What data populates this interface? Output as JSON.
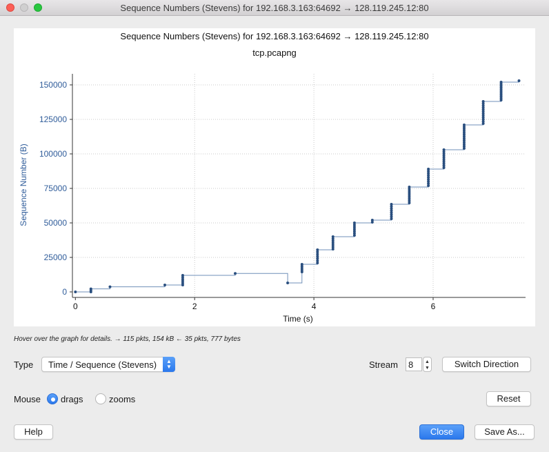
{
  "window": {
    "title": "Sequence Numbers (Stevens) for 192.168.3.163:64692 → 128.119.245.12:80"
  },
  "chart_data": {
    "type": "scatter",
    "title": "Sequence Numbers (Stevens) for 192.168.3.163:64692 → 128.119.245.12:80",
    "subtitle": "tcp.pcapng",
    "xlabel": "Time (s)",
    "ylabel": "Sequence Number (B)",
    "xlim": [
      -0.05,
      7.55
    ],
    "ylim": [
      -4000,
      158000
    ],
    "x_ticks": [
      0,
      2,
      4,
      6
    ],
    "y_ticks": [
      0,
      25000,
      50000,
      75000,
      100000,
      125000,
      150000
    ],
    "y_tick_labels": [
      "0",
      "25000",
      "50000",
      "75000",
      "100000",
      "125000",
      "150000"
    ],
    "grid": true,
    "series": [
      {
        "color": "#2a4f7f",
        "step_line": [
          [
            0.0,
            0
          ],
          [
            0.26,
            0
          ],
          [
            0.26,
            2200
          ],
          [
            0.58,
            2200
          ],
          [
            0.58,
            3700
          ],
          [
            1.5,
            3700
          ],
          [
            1.5,
            5000
          ],
          [
            1.8,
            5000
          ],
          [
            1.8,
            12000
          ],
          [
            2.68,
            12000
          ],
          [
            2.68,
            13400
          ],
          [
            3.56,
            13400
          ],
          [
            3.56,
            6500
          ],
          [
            3.8,
            6500
          ],
          [
            3.8,
            20000
          ],
          [
            4.06,
            20000
          ],
          [
            4.06,
            30500
          ],
          [
            4.32,
            30500
          ],
          [
            4.32,
            40000
          ],
          [
            4.68,
            40000
          ],
          [
            4.68,
            50000
          ],
          [
            4.98,
            50000
          ],
          [
            4.98,
            52000
          ],
          [
            5.3,
            52000
          ],
          [
            5.3,
            63500
          ],
          [
            5.6,
            63500
          ],
          [
            5.6,
            76000
          ],
          [
            5.92,
            76000
          ],
          [
            5.92,
            89000
          ],
          [
            6.18,
            89000
          ],
          [
            6.18,
            103000
          ],
          [
            6.52,
            103000
          ],
          [
            6.52,
            121000
          ],
          [
            6.84,
            121000
          ],
          [
            6.84,
            138000
          ],
          [
            7.14,
            138000
          ],
          [
            7.14,
            152000
          ],
          [
            7.44,
            152000
          ],
          [
            7.44,
            153000
          ]
        ],
        "clusters": [
          {
            "x": 0.0,
            "y_from": 0,
            "y_to": 0,
            "n": 1
          },
          {
            "x": 0.26,
            "y_from": 0,
            "y_to": 2200,
            "n": 3
          },
          {
            "x": 0.58,
            "y_from": 3700,
            "y_to": 3700,
            "n": 1
          },
          {
            "x": 1.5,
            "y_from": 5000,
            "y_to": 5000,
            "n": 1
          },
          {
            "x": 1.8,
            "y_from": 5000,
            "y_to": 12000,
            "n": 6
          },
          {
            "x": 2.68,
            "y_from": 13400,
            "y_to": 13400,
            "n": 1
          },
          {
            "x": 3.56,
            "y_from": 6500,
            "y_to": 6500,
            "n": 1
          },
          {
            "x": 3.8,
            "y_from": 14500,
            "y_to": 20000,
            "n": 5
          },
          {
            "x": 4.06,
            "y_from": 21000,
            "y_to": 30500,
            "n": 7
          },
          {
            "x": 4.32,
            "y_from": 31000,
            "y_to": 40000,
            "n": 7
          },
          {
            "x": 4.68,
            "y_from": 41000,
            "y_to": 50000,
            "n": 7
          },
          {
            "x": 4.98,
            "y_from": 50500,
            "y_to": 52000,
            "n": 2
          },
          {
            "x": 5.3,
            "y_from": 53000,
            "y_to": 63500,
            "n": 8
          },
          {
            "x": 5.6,
            "y_from": 64500,
            "y_to": 76000,
            "n": 9
          },
          {
            "x": 5.92,
            "y_from": 77000,
            "y_to": 89000,
            "n": 9
          },
          {
            "x": 6.18,
            "y_from": 90000,
            "y_to": 103000,
            "n": 10
          },
          {
            "x": 6.52,
            "y_from": 104000,
            "y_to": 121000,
            "n": 13
          },
          {
            "x": 6.84,
            "y_from": 122000,
            "y_to": 138000,
            "n": 12
          },
          {
            "x": 7.14,
            "y_from": 139000,
            "y_to": 152000,
            "n": 11
          },
          {
            "x": 7.44,
            "y_from": 153000,
            "y_to": 153000,
            "n": 1
          }
        ]
      }
    ]
  },
  "hint": "Hover over the graph for details. → 115 pkts, 154 kB ← 35 pkts, 777 bytes",
  "controls": {
    "type_label": "Type",
    "type_value": "Time / Sequence (Stevens)",
    "stream_label": "Stream",
    "stream_value": "8",
    "switch_direction": "Switch Direction",
    "mouse_label": "Mouse",
    "mouse_drags": "drags",
    "mouse_zooms": "zooms",
    "mouse_selected": "drags",
    "reset": "Reset"
  },
  "footer": {
    "help": "Help",
    "close": "Close",
    "save_as": "Save As..."
  }
}
